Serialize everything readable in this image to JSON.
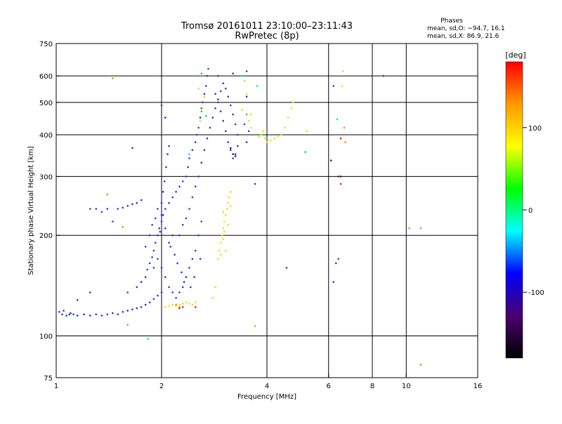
{
  "chart_data": {
    "type": "scatter",
    "title": "Tromsø 20161011 23:10:00–23:11:43",
    "subtitle": "RwPretec (8p)",
    "xlabel": "Frequency [MHz]",
    "ylabel": "Stationary phase Virtual Height [km]",
    "x_scale": "log",
    "y_scale": "log",
    "xlim": [
      1,
      16
    ],
    "ylim": [
      75,
      750
    ],
    "x_ticks": [
      1,
      2,
      4,
      6,
      8,
      10,
      16
    ],
    "y_ticks": [
      75,
      100,
      200,
      300,
      400,
      500,
      600,
      750
    ],
    "x_grid": [
      2,
      4,
      6,
      8,
      10
    ],
    "y_grid": [
      100,
      200,
      300,
      400,
      500,
      600
    ],
    "legend_box": {
      "title": "Phases",
      "line1": "mean, sd,O: −94.7, 16.1",
      "line2": "mean, sd,X:  86.9, 21.6"
    },
    "colorbar": {
      "label": "[deg]",
      "range": [
        -180,
        180
      ],
      "ticks": [
        100,
        0,
        -100
      ],
      "stops": [
        "#000000",
        "#4b006e",
        "#0000ff",
        "#00ffff",
        "#00ff00",
        "#ffff00",
        "#ff9900",
        "#ff0000"
      ]
    },
    "series": [
      {
        "name": "",
        "phase": -100,
        "color": "#2233dd",
        "points": [
          [
            1.02,
            118
          ],
          [
            1.04,
            116
          ],
          [
            1.05,
            119
          ],
          [
            1.07,
            115
          ],
          [
            1.09,
            116
          ],
          [
            1.1,
            117
          ],
          [
            1.12,
            116
          ],
          [
            1.15,
            115
          ],
          [
            1.2,
            116
          ],
          [
            1.25,
            115
          ],
          [
            1.3,
            116
          ],
          [
            1.35,
            115
          ],
          [
            1.4,
            116
          ],
          [
            1.45,
            117
          ],
          [
            1.5,
            116
          ],
          [
            1.55,
            118
          ],
          [
            1.6,
            119
          ],
          [
            1.65,
            120
          ],
          [
            1.7,
            121
          ],
          [
            1.75,
            122
          ],
          [
            1.8,
            124
          ],
          [
            1.85,
            126
          ],
          [
            1.9,
            129
          ],
          [
            1.95,
            132
          ],
          [
            2.0,
            135
          ],
          [
            1.6,
            135
          ],
          [
            1.7,
            140
          ],
          [
            1.75,
            145
          ],
          [
            1.8,
            150
          ],
          [
            1.82,
            158
          ],
          [
            1.85,
            165
          ],
          [
            1.88,
            172
          ],
          [
            1.9,
            180
          ],
          [
            1.92,
            190
          ],
          [
            1.95,
            200
          ],
          [
            1.97,
            210
          ],
          [
            2.0,
            220
          ],
          [
            2.02,
            230
          ],
          [
            2.05,
            240
          ],
          [
            2.1,
            250
          ],
          [
            2.15,
            260
          ],
          [
            2.2,
            270
          ],
          [
            2.25,
            280
          ],
          [
            2.3,
            290
          ],
          [
            2.35,
            300
          ],
          [
            2.38,
            320
          ],
          [
            2.4,
            340
          ],
          [
            2.45,
            360
          ],
          [
            2.5,
            380
          ],
          [
            2.52,
            400
          ],
          [
            2.55,
            420
          ],
          [
            2.58,
            450
          ],
          [
            2.6,
            480
          ],
          [
            2.62,
            500
          ],
          [
            2.65,
            530
          ],
          [
            2.68,
            560
          ],
          [
            2.7,
            600
          ],
          [
            2.72,
            630
          ],
          [
            2.0,
            250
          ],
          [
            2.02,
            270
          ],
          [
            2.04,
            290
          ],
          [
            2.06,
            320
          ],
          [
            2.08,
            350
          ],
          [
            2.1,
            370
          ],
          [
            1.9,
            160
          ],
          [
            1.95,
            170
          ],
          [
            2.0,
            160
          ],
          [
            2.05,
            150
          ],
          [
            2.1,
            140
          ],
          [
            2.15,
            135
          ],
          [
            2.2,
            130
          ],
          [
            2.25,
            135
          ],
          [
            2.3,
            140
          ],
          [
            2.35,
            150
          ],
          [
            2.4,
            160
          ],
          [
            2.45,
            170
          ],
          [
            2.5,
            180
          ],
          [
            2.55,
            200
          ],
          [
            2.6,
            220
          ],
          [
            2.4,
            240
          ],
          [
            2.45,
            260
          ],
          [
            2.5,
            280
          ],
          [
            2.55,
            300
          ],
          [
            2.6,
            330
          ],
          [
            2.65,
            360
          ],
          [
            2.7,
            390
          ],
          [
            2.75,
            420
          ],
          [
            2.8,
            450
          ],
          [
            2.85,
            480
          ],
          [
            2.9,
            510
          ],
          [
            2.95,
            540
          ],
          [
            3.0,
            570
          ],
          [
            3.05,
            550
          ],
          [
            3.1,
            520
          ],
          [
            3.15,
            490
          ],
          [
            3.2,
            460
          ],
          [
            3.25,
            430
          ],
          [
            3.3,
            400
          ],
          [
            3.3,
            370
          ],
          [
            3.25,
            350
          ],
          [
            3.2,
            340
          ],
          [
            3.15,
            360
          ],
          [
            3.1,
            380
          ],
          [
            3.05,
            410
          ],
          [
            3.0,
            440
          ],
          [
            2.95,
            470
          ],
          [
            2.9,
            500
          ],
          [
            2.85,
            530
          ],
          [
            3.5,
            380
          ],
          [
            3.55,
            410
          ],
          [
            3.45,
            430
          ],
          [
            3.5,
            520
          ],
          [
            3.5,
            620
          ],
          [
            3.2,
            610
          ],
          [
            2.9,
            600
          ],
          [
            2.0,
            490
          ],
          [
            2.05,
            450
          ],
          [
            1.4,
            240
          ],
          [
            1.35,
            235
          ],
          [
            1.3,
            240
          ],
          [
            1.5,
            240
          ],
          [
            1.55,
            242
          ],
          [
            1.6,
            245
          ],
          [
            1.65,
            248
          ],
          [
            1.7,
            250
          ],
          [
            1.75,
            255
          ],
          [
            1.25,
            240
          ],
          [
            2.25,
            200
          ],
          [
            2.3,
            215
          ],
          [
            2.35,
            225
          ],
          [
            2.15,
            200
          ],
          [
            2.1,
            190
          ],
          [
            2.05,
            210
          ],
          [
            2.0,
            230
          ],
          [
            1.95,
            240
          ],
          [
            4.55,
            160
          ],
          [
            3.7,
            285
          ],
          [
            5.15,
            355
          ],
          [
            6.2,
            560
          ],
          [
            8.6,
            600
          ],
          [
            6.3,
            165
          ],
          [
            6.4,
            170
          ],
          [
            6.2,
            145
          ],
          [
            1.45,
            220
          ],
          [
            1.65,
            365
          ],
          [
            1.25,
            135
          ],
          [
            1.15,
            128
          ],
          [
            1.85,
            200
          ],
          [
            1.8,
            185
          ],
          [
            1.88,
            215
          ],
          [
            1.92,
            225
          ],
          [
            1.98,
            205
          ],
          [
            2.12,
            185
          ],
          [
            2.18,
            175
          ],
          [
            2.22,
            165
          ],
          [
            2.28,
            155
          ],
          [
            2.32,
            145
          ],
          [
            2.42,
            140
          ],
          [
            2.48,
            150
          ],
          [
            2.58,
            170
          ]
        ]
      },
      {
        "name": "",
        "phase": 95,
        "color": "#e8e000",
        "points": [
          [
            2.05,
            122
          ],
          [
            2.1,
            123
          ],
          [
            2.15,
            124
          ],
          [
            2.2,
            123
          ],
          [
            2.25,
            124
          ],
          [
            2.3,
            125
          ],
          [
            2.35,
            126
          ],
          [
            2.4,
            125
          ],
          [
            2.45,
            124
          ],
          [
            2.5,
            126
          ],
          [
            2.9,
            170
          ],
          [
            2.92,
            180
          ],
          [
            2.95,
            190
          ],
          [
            2.98,
            200
          ],
          [
            3.0,
            210
          ],
          [
            3.02,
            220
          ],
          [
            3.05,
            230
          ],
          [
            3.08,
            240
          ],
          [
            3.1,
            250
          ],
          [
            3.12,
            260
          ],
          [
            3.15,
            270
          ],
          [
            3.0,
            195
          ],
          [
            3.02,
            205
          ],
          [
            2.95,
            175
          ],
          [
            2.85,
            140
          ],
          [
            2.8,
            130
          ],
          [
            3.55,
            440
          ],
          [
            3.6,
            460
          ],
          [
            3.6,
            420
          ],
          [
            3.8,
            395
          ],
          [
            3.85,
            400
          ],
          [
            3.9,
            410
          ],
          [
            3.95,
            390
          ],
          [
            4.0,
            380
          ],
          [
            4.1,
            385
          ],
          [
            4.2,
            390
          ],
          [
            4.3,
            395
          ],
          [
            4.4,
            400
          ],
          [
            4.5,
            420
          ],
          [
            4.6,
            450
          ],
          [
            4.7,
            480
          ],
          [
            4.75,
            500
          ],
          [
            3.4,
            475
          ],
          [
            3.5,
            530
          ],
          [
            6.55,
            560
          ],
          [
            6.6,
            620
          ],
          [
            5.2,
            410
          ],
          [
            2.55,
            550
          ],
          [
            2.62,
            480
          ],
          [
            2.65,
            520
          ],
          [
            2.58,
            440
          ],
          [
            3.45,
            580
          ],
          [
            3.05,
            180
          ],
          [
            3.1,
            215
          ],
          [
            3.0,
            235
          ],
          [
            3.15,
            245
          ]
        ]
      },
      {
        "name": "",
        "phase": 150,
        "color": "#ff8800",
        "points": [
          [
            1.45,
            590
          ],
          [
            1.4,
            265
          ],
          [
            1.55,
            212
          ],
          [
            1.6,
            108
          ],
          [
            3.7,
            107
          ],
          [
            2.2,
            124
          ],
          [
            2.25,
            122
          ],
          [
            6.65,
            420
          ],
          [
            6.7,
            380
          ],
          [
            10.2,
            210
          ],
          [
            11.0,
            210
          ],
          [
            11.0,
            82
          ]
        ]
      },
      {
        "name": "",
        "phase": 0,
        "color": "#00dd44",
        "points": [
          [
            3.9,
            400
          ],
          [
            2.6,
            470
          ],
          [
            3.5,
            460
          ],
          [
            2.68,
            455
          ],
          [
            2.6,
            610
          ]
        ]
      },
      {
        "name": "",
        "phase": -40,
        "color": "#00ddee",
        "points": [
          [
            1.83,
            98
          ],
          [
            3.4,
            600
          ],
          [
            6.35,
            445
          ],
          [
            3.75,
            560
          ],
          [
            2.4,
            350
          ],
          [
            5.15,
            355
          ]
        ]
      },
      {
        "name": "",
        "phase": -160,
        "color": "#4b006e",
        "points": [
          [
            3.2,
            350
          ],
          [
            3.25,
            345
          ],
          [
            6.1,
            335
          ],
          [
            6.4,
            300
          ],
          [
            6.5,
            300
          ],
          [
            3.15,
            365
          ]
        ]
      },
      {
        "name": "",
        "phase": 175,
        "color": "#ee1111",
        "points": [
          [
            2.25,
            121
          ],
          [
            2.3,
            122
          ],
          [
            6.5,
            285
          ],
          [
            6.5,
            390
          ],
          [
            2.5,
            122
          ]
        ]
      }
    ]
  }
}
